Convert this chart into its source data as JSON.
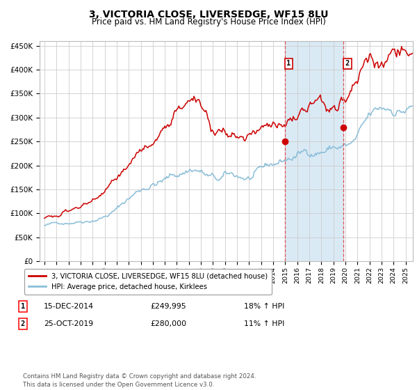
{
  "title": "3, VICTORIA CLOSE, LIVERSEDGE, WF15 8LU",
  "subtitle": "Price paid vs. HM Land Registry's House Price Index (HPI)",
  "title_fontsize": 10,
  "subtitle_fontsize": 8.5,
  "ylabel_ticks": [
    "£0",
    "£50K",
    "£100K",
    "£150K",
    "£200K",
    "£250K",
    "£300K",
    "£350K",
    "£400K",
    "£450K"
  ],
  "ytick_values": [
    0,
    50000,
    100000,
    150000,
    200000,
    250000,
    300000,
    350000,
    400000,
    450000
  ],
  "ylim": [
    0,
    460000
  ],
  "xlim_start": 1994.6,
  "xlim_end": 2025.6,
  "xtick_years": [
    1995,
    1996,
    1997,
    1998,
    1999,
    2000,
    2001,
    2002,
    2003,
    2004,
    2005,
    2006,
    2007,
    2008,
    2009,
    2010,
    2011,
    2012,
    2013,
    2014,
    2015,
    2016,
    2017,
    2018,
    2019,
    2020,
    2021,
    2022,
    2023,
    2024,
    2025
  ],
  "sale1_x": 2014.958,
  "sale1_y": 249995,
  "sale1_label": "1",
  "sale1_date": "15-DEC-2014",
  "sale1_price": "£249,995",
  "sale1_hpi": "18% ↑ HPI",
  "sale2_x": 2019.833,
  "sale2_y": 280000,
  "sale2_label": "2",
  "sale2_date": "25-OCT-2019",
  "sale2_price": "£280,000",
  "sale2_hpi": "11% ↑ HPI",
  "hpi_color": "#89bdd8",
  "property_color": "#cc0000",
  "shade_color": "#daeaf5",
  "vline_color": "#e05050",
  "grid_color": "#cccccc",
  "bg_color": "#ffffff",
  "legend_label_property": "3, VICTORIA CLOSE, LIVERSEDGE, WF15 8LU (detached house)",
  "legend_label_hpi": "HPI: Average price, detached house, Kirklees",
  "footnote": "Contains HM Land Registry data © Crown copyright and database right 2024.\nThis data is licensed under the Open Government Licence v3.0."
}
